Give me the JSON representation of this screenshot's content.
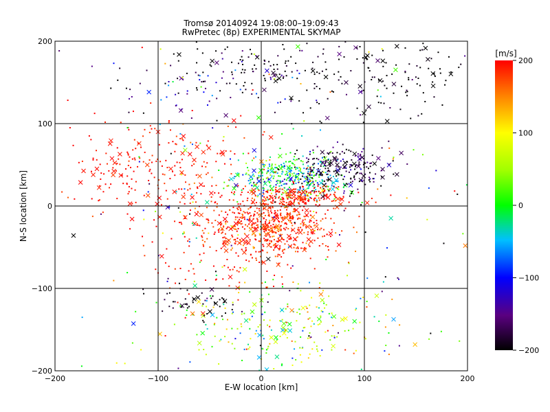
{
  "chart_data": {
    "type": "scatter",
    "title": "Tromsø 20140924 19:08:00–19:09:43",
    "subtitle": "RwPretec (8p) EXPERIMENTAL SKYMAP",
    "xlabel": "E-W location [km]",
    "ylabel": "N-S location [km]",
    "xlim": [
      -200,
      200
    ],
    "ylim": [
      -200,
      200
    ],
    "x_ticks": [
      -200,
      -100,
      0,
      100,
      200
    ],
    "y_ticks": [
      -200,
      -100,
      0,
      100,
      200
    ],
    "grid": true,
    "colorbar": {
      "label": "[m/s]",
      "min": -200,
      "max": 200,
      "ticks": [
        200,
        100,
        0,
        -100,
        -200
      ],
      "placement": "right"
    },
    "marker_types": [
      "dot",
      "cross"
    ],
    "clusters": [
      {
        "cx": 5,
        "cy": 168,
        "sx": 60,
        "sy": 18,
        "n": 160,
        "vmean": -200,
        "vsd": 40
      },
      {
        "cx": 125,
        "cy": 155,
        "sx": 45,
        "sy": 25,
        "n": 110,
        "vmean": -200,
        "vsd": 20
      },
      {
        "cx": -60,
        "cy": 140,
        "sx": 50,
        "sy": 15,
        "n": 40,
        "vmean": -120,
        "vsd": 40
      },
      {
        "cx": -140,
        "cy": 45,
        "sx": 25,
        "sy": 25,
        "n": 90,
        "vmean": 195,
        "vsd": 10
      },
      {
        "cx": -80,
        "cy": 40,
        "sx": 35,
        "sy": 35,
        "n": 140,
        "vmean": 190,
        "vsd": 15
      },
      {
        "cx": 30,
        "cy": 35,
        "sx": 28,
        "sy": 13,
        "n": 360,
        "vmean": -20,
        "vsd": 60
      },
      {
        "cx": 75,
        "cy": 45,
        "sx": 25,
        "sy": 12,
        "n": 220,
        "vmean": -180,
        "vsd": 35
      },
      {
        "cx": 30,
        "cy": 10,
        "sx": 25,
        "sy": 8,
        "n": 200,
        "vmean": 190,
        "vsd": 15
      },
      {
        "cx": 10,
        "cy": -25,
        "sx": 30,
        "sy": 18,
        "n": 520,
        "vmean": 185,
        "vsd": 25
      },
      {
        "cx": -40,
        "cy": -50,
        "sx": 40,
        "sy": 40,
        "n": 120,
        "vmean": 195,
        "vsd": 15
      },
      {
        "cx": 10,
        "cy": -145,
        "sx": 55,
        "sy": 30,
        "n": 260,
        "vmean": 40,
        "vsd": 70
      },
      {
        "cx": -60,
        "cy": -115,
        "sx": 25,
        "sy": 10,
        "n": 50,
        "vmean": -200,
        "vsd": 20
      },
      {
        "cx": 0,
        "cy": 0,
        "sx": 110,
        "sy": 110,
        "n": 230,
        "vmean": 0,
        "vsd": 150
      }
    ]
  }
}
